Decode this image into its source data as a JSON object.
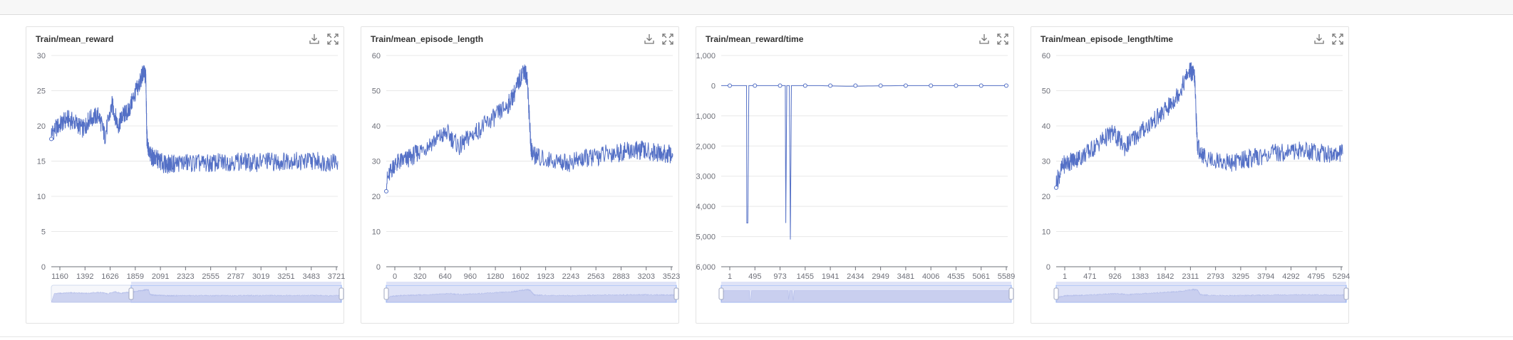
{
  "chart_data": [
    {
      "type": "line",
      "title": "Train/mean_reward",
      "xlabel": "",
      "ylabel": "",
      "xlim": [
        928,
        3721
      ],
      "ylim": [
        0,
        30
      ],
      "x_ticks": [
        "1160",
        "1392",
        "1626",
        "1859",
        "2091",
        "2323",
        "2555",
        "2787",
        "3019",
        "3251",
        "3483",
        "3721"
      ],
      "y_ticks": [
        "0",
        "5",
        "10",
        "15",
        "20",
        "25",
        "30"
      ],
      "series": [
        {
          "x": [
            928,
            1000,
            1080,
            1160,
            1240,
            1300,
            1392,
            1450,
            1520,
            1580,
            1626,
            1680,
            1740,
            1790,
            1820,
            1850,
            1859,
            1880,
            1920,
            1970,
            2030,
            2091,
            2200,
            2323,
            2440,
            2555,
            2670,
            2787,
            2900,
            3019,
            3130,
            3251,
            3370,
            3483,
            3600,
            3721
          ],
          "values": [
            19,
            20,
            21,
            20.5,
            19.5,
            21,
            21.5,
            18.5,
            23,
            20,
            21.5,
            22,
            24.5,
            26,
            27.5,
            27,
            18.5,
            16,
            15.5,
            15.2,
            14.5,
            14.6,
            14.8,
            14.7,
            14.6,
            14.8,
            14.9,
            15,
            14.7,
            15.1,
            14.8,
            15.2,
            14.9,
            15.1,
            14.8,
            15
          ]
        }
      ],
      "color": "#5470c6"
    },
    {
      "type": "line",
      "title": "Train/mean_episode_length",
      "xlabel": "",
      "ylabel": "",
      "xlim": [
        0,
        3763
      ],
      "ylim": [
        0,
        60
      ],
      "x_ticks": [
        "0",
        "320",
        "640",
        "960",
        "1280",
        "1602",
        "1923",
        "2243",
        "2563",
        "2883",
        "3203",
        "3523"
      ],
      "y_ticks": [
        "0",
        "10",
        "20",
        "30",
        "40",
        "50",
        "60"
      ],
      "series": [
        {
          "x": [
            0,
            100,
            200,
            320,
            450,
            640,
            800,
            960,
            1100,
            1280,
            1450,
            1602,
            1700,
            1800,
            1850,
            1900,
            1923,
            2000,
            2243,
            2400,
            2563,
            2700,
            2883,
            3050,
            3203,
            3350,
            3523,
            3650,
            3763
          ],
          "values": [
            24,
            29,
            30,
            31,
            33,
            36,
            38,
            34,
            37,
            40,
            43,
            46,
            50,
            56,
            54,
            34,
            32,
            31,
            30,
            29.5,
            30.5,
            31,
            32,
            32.5,
            33,
            33,
            32.5,
            32,
            32
          ]
        }
      ],
      "color": "#5470c6"
    },
    {
      "type": "line",
      "title": "Train/mean_reward/time",
      "xlabel": "",
      "ylabel": "",
      "xlim": [
        1,
        5589
      ],
      "ylim": [
        -6000,
        1000
      ],
      "x_ticks": [
        "1",
        "495",
        "973",
        "1455",
        "1941",
        "2434",
        "2949",
        "3481",
        "4006",
        "4535",
        "5061",
        "5589"
      ],
      "y_ticks": [
        "-6,000",
        "-5,000",
        "-4,000",
        "-3,000",
        "-2,000",
        "-1,000",
        "0",
        "1,000"
      ],
      "series": [
        {
          "x": [
            1,
            495,
            500,
            520,
            540,
            973,
            1250,
            1260,
            1280,
            1330,
            1350,
            1370,
            1455,
            1941,
            2434,
            2949,
            3481,
            4006,
            4535,
            5061,
            5589
          ],
          "values": [
            0,
            0,
            -4550,
            -4550,
            0,
            0,
            0,
            -4550,
            0,
            0,
            -5100,
            0,
            0,
            0,
            -20,
            -10,
            0,
            0,
            0,
            0,
            0
          ]
        }
      ],
      "color": "#5470c6"
    },
    {
      "type": "line",
      "title": "Train/mean_episode_length/time",
      "xlabel": "",
      "ylabel": "",
      "xlim": [
        1,
        5780
      ],
      "ylim": [
        0,
        60
      ],
      "x_ticks": [
        "1",
        "471",
        "926",
        "1383",
        "1842",
        "2311",
        "2793",
        "3295",
        "3794",
        "4292",
        "4795",
        "5294"
      ],
      "y_ticks": [
        "0",
        "10",
        "20",
        "30",
        "40",
        "50",
        "60"
      ],
      "series": [
        {
          "x": [
            1,
            150,
            300,
            471,
            700,
            926,
            1150,
            1383,
            1600,
            1842,
            2100,
            2311,
            2500,
            2700,
            2793,
            2850,
            3000,
            3295,
            3550,
            3794,
            4050,
            4292,
            4550,
            4795,
            5050,
            5294,
            5550,
            5780
          ],
          "values": [
            24,
            29,
            30,
            31,
            33,
            36,
            38,
            34,
            37,
            40,
            43,
            46,
            50,
            56,
            54,
            34,
            31,
            30,
            29.5,
            30.5,
            31,
            32,
            32.5,
            33,
            33,
            32.5,
            32,
            32
          ]
        }
      ],
      "color": "#5470c6"
    }
  ]
}
